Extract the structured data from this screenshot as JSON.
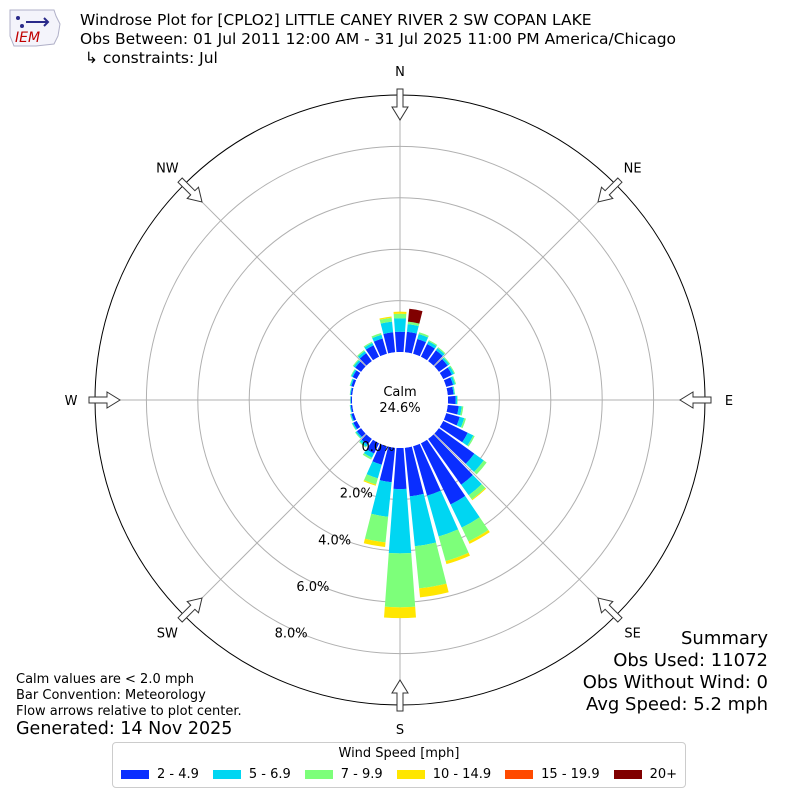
{
  "header": {
    "title_line1": "Windrose Plot for [CPLO2] LITTLE CANEY RIVER 2 SW COPAN LAKE",
    "title_line2": "Obs Between: 01 Jul 2011 12:00 AM - 31 Jul 2025 11:00 PM America/Chicago",
    "title_line3": " ↳ constraints: Jul",
    "logo_text": "IEM"
  },
  "calm": {
    "label": "Calm",
    "value": "24.6%"
  },
  "summary": {
    "heading": "Summary",
    "obs_used": "Obs Used: 11072",
    "obs_without_wind": "Obs Without Wind: 0",
    "avg_speed": "Avg Speed: 5.2 mph"
  },
  "notes": {
    "line1": "Calm values are < 2.0 mph",
    "line2": "Bar Convention: Meteorology",
    "line3": "Flow arrows relative to plot center."
  },
  "generated": "Generated: 14 Nov 2025",
  "legend": {
    "title": "Wind Speed [mph]",
    "items": [
      {
        "label": "2 - 4.9",
        "color": "#0a2eff"
      },
      {
        "label": "5 - 6.9",
        "color": "#00d6f2"
      },
      {
        "label": "7 - 9.9",
        "color": "#7dff7a"
      },
      {
        "label": "10 - 14.9",
        "color": "#ffe600"
      },
      {
        "label": "15 - 19.9",
        "color": "#ff4a00"
      },
      {
        "label": "20+",
        "color": "#800000"
      }
    ]
  },
  "chart_data": {
    "type": "windrose",
    "radial_ticks": [
      "0.0%",
      "2.0%",
      "4.0%",
      "6.0%",
      "8.0%"
    ],
    "radial_max": 10,
    "directions": [
      "N",
      "NE",
      "E",
      "SE",
      "S",
      "SW",
      "W",
      "NW"
    ],
    "bins": [
      "2 - 4.9",
      "5 - 6.9",
      "7 - 9.9",
      "10 - 14.9",
      "15 - 19.9",
      "20+"
    ],
    "sectors": [
      {
        "dir": 0,
        "values": [
          0.79,
          0.52,
          0.18,
          0.08,
          0,
          0
        ]
      },
      {
        "dir": 10,
        "values": [
          0.8,
          0.3,
          0.1,
          0,
          0,
          0.5
        ]
      },
      {
        "dir": 20,
        "values": [
          0.6,
          0.2,
          0.07,
          0,
          0,
          0
        ]
      },
      {
        "dir": 30,
        "values": [
          0.55,
          0.12,
          0.05,
          0,
          0,
          0
        ]
      },
      {
        "dir": 40,
        "values": [
          0.52,
          0.1,
          0.05,
          0,
          0,
          0
        ]
      },
      {
        "dir": 50,
        "values": [
          0.42,
          0.08,
          0.04,
          0,
          0,
          0
        ]
      },
      {
        "dir": 60,
        "values": [
          0.38,
          0.09,
          0.04,
          0,
          0,
          0
        ]
      },
      {
        "dir": 70,
        "values": [
          0.28,
          0.08,
          0.04,
          0,
          0,
          0
        ]
      },
      {
        "dir": 80,
        "values": [
          0.23,
          0.04,
          0.02,
          0,
          0,
          0
        ]
      },
      {
        "dir": 90,
        "values": [
          0.3,
          0.06,
          0.02,
          0,
          0,
          0
        ]
      },
      {
        "dir": 100,
        "values": [
          0.43,
          0.12,
          0.06,
          0,
          0,
          0
        ]
      },
      {
        "dir": 110,
        "values": [
          0.55,
          0.18,
          0.07,
          0,
          0,
          0
        ]
      },
      {
        "dir": 120,
        "values": [
          1.06,
          0.24,
          0.06,
          0,
          0,
          0
        ]
      },
      {
        "dir": 130,
        "values": [
          1.7,
          0.45,
          0.14,
          0,
          0,
          0
        ]
      },
      {
        "dir": 140,
        "values": [
          2.2,
          0.5,
          0.2,
          0.04,
          0,
          0
        ]
      },
      {
        "dir": 150,
        "values": [
          2.65,
          1.0,
          0.6,
          0.1,
          0,
          0
        ]
      },
      {
        "dir": 160,
        "values": [
          2.0,
          1.65,
          1.0,
          0.12,
          0,
          0
        ]
      },
      {
        "dir": 170,
        "values": [
          1.9,
          1.95,
          1.65,
          0.35,
          0,
          0
        ]
      },
      {
        "dir": 180,
        "values": [
          1.6,
          2.5,
          2.1,
          0.42,
          0,
          0
        ]
      },
      {
        "dir": 190,
        "values": [
          1.35,
          1.35,
          1.0,
          0.18,
          0,
          0
        ]
      },
      {
        "dir": 200,
        "values": [
          0.75,
          0.55,
          0.25,
          0.05,
          0,
          0
        ]
      },
      {
        "dir": 210,
        "values": [
          0.45,
          0.18,
          0.08,
          0,
          0,
          0
        ]
      },
      {
        "dir": 220,
        "values": [
          0.28,
          0.1,
          0.04,
          0,
          0,
          0
        ]
      },
      {
        "dir": 230,
        "values": [
          0.2,
          0.06,
          0.03,
          0,
          0,
          0
        ]
      },
      {
        "dir": 240,
        "values": [
          0.15,
          0.05,
          0.02,
          0,
          0,
          0
        ]
      },
      {
        "dir": 250,
        "values": [
          0.1,
          0.04,
          0.02,
          0,
          0,
          0
        ]
      },
      {
        "dir": 260,
        "values": [
          0.06,
          0.03,
          0.01,
          0,
          0,
          0
        ]
      },
      {
        "dir": 270,
        "values": [
          0.05,
          0.02,
          0.01,
          0,
          0,
          0
        ]
      },
      {
        "dir": 280,
        "values": [
          0.06,
          0.03,
          0.01,
          0,
          0,
          0
        ]
      },
      {
        "dir": 290,
        "values": [
          0.1,
          0.05,
          0.02,
          0,
          0,
          0
        ]
      },
      {
        "dir": 300,
        "values": [
          0.18,
          0.06,
          0.03,
          0,
          0,
          0
        ]
      },
      {
        "dir": 310,
        "values": [
          0.28,
          0.08,
          0.04,
          0,
          0,
          0
        ]
      },
      {
        "dir": 320,
        "values": [
          0.38,
          0.1,
          0.05,
          0,
          0,
          0
        ]
      },
      {
        "dir": 330,
        "values": [
          0.5,
          0.1,
          0.05,
          0,
          0,
          0
        ]
      },
      {
        "dir": 340,
        "values": [
          0.62,
          0.15,
          0.07,
          0,
          0,
          0
        ]
      },
      {
        "dir": 350,
        "values": [
          0.78,
          0.42,
          0.15,
          0.05,
          0,
          0
        ]
      }
    ]
  }
}
